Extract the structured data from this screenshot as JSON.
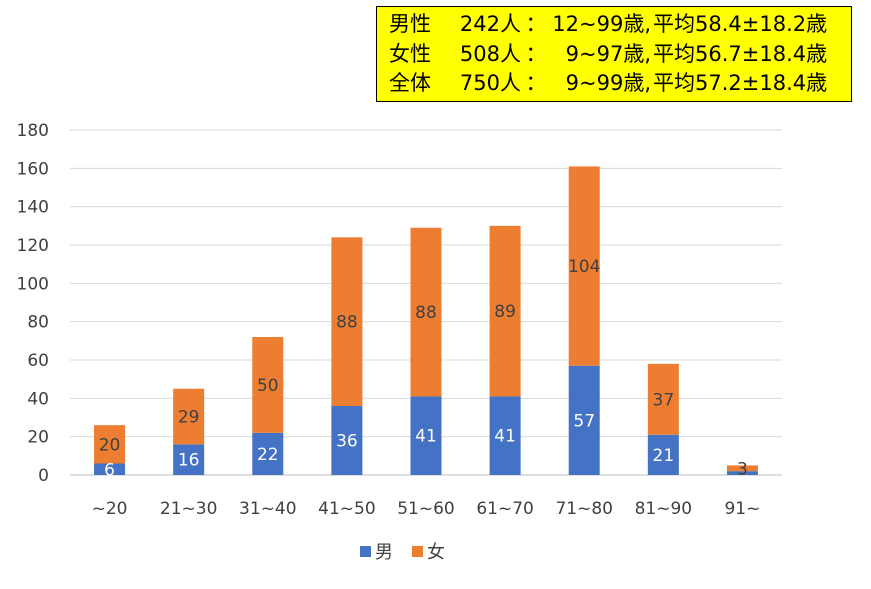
{
  "summary_box": {
    "rows": [
      {
        "label": "男性",
        "count": "242人",
        "sep": "：",
        "range": "12~99歳,",
        "mean": "平均58.4±18.2歳"
      },
      {
        "label": "女性",
        "count": "508人",
        "sep": "：",
        "range": "9~97歳,",
        "mean": "平均56.7±18.4歳"
      },
      {
        "label": "全体",
        "count": "750人",
        "sep": "：",
        "range": "9~99歳,",
        "mean": "平均57.2±18.4歳"
      }
    ],
    "background": "#ffff00"
  },
  "chart_data": {
    "type": "bar",
    "stacked": true,
    "categories": [
      "~20",
      "21~30",
      "31~40",
      "41~50",
      "51~60",
      "61~70",
      "71~80",
      "81~90",
      "91~"
    ],
    "series": [
      {
        "name": "男",
        "color": "#4472c4",
        "label_color": "#ffffff",
        "values": [
          6,
          16,
          22,
          36,
          41,
          41,
          57,
          21,
          2
        ]
      },
      {
        "name": "女",
        "color": "#ed7d31",
        "label_color": "#404040",
        "values": [
          20,
          29,
          50,
          88,
          88,
          89,
          104,
          37,
          3
        ]
      }
    ],
    "data_labels": [
      [
        "6",
        "16",
        "22",
        "36",
        "41",
        "41",
        "57",
        "21",
        ""
      ],
      [
        "20",
        "29",
        "50",
        "88",
        "88",
        "89",
        "104",
        "37",
        "3"
      ]
    ],
    "ylim": [
      0,
      180
    ],
    "yticks": [
      0,
      20,
      40,
      60,
      80,
      100,
      120,
      140,
      160,
      180
    ],
    "grid": true,
    "legend": "bottom"
  }
}
